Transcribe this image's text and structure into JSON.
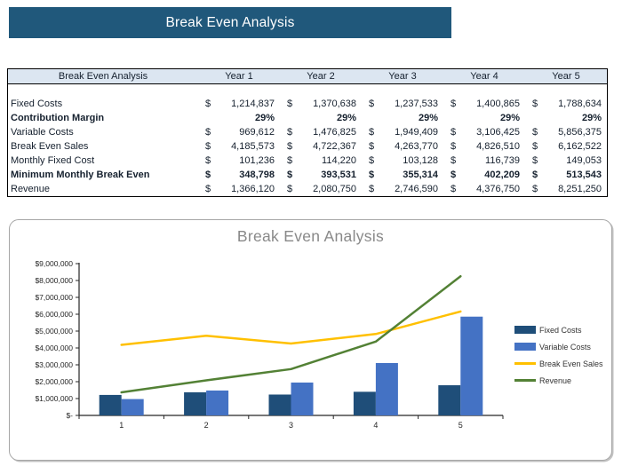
{
  "banner": {
    "title": "Break Even Analysis",
    "bg_color": "#20587B",
    "text_color": "#FFFFFF"
  },
  "table": {
    "currency_symbol": "$",
    "header": {
      "label": "Break Even Analysis",
      "years": [
        "Year 1",
        "Year 2",
        "Year 3",
        "Year 4",
        "Year 5"
      ]
    },
    "rows": [
      {
        "label": "Fixed Costs",
        "bold": false,
        "currency": true,
        "values": [
          "1,214,837",
          "1,370,638",
          "1,237,533",
          "1,400,865",
          "1,788,634"
        ]
      },
      {
        "label": "Contribution Margin",
        "bold": true,
        "currency": false,
        "values": [
          "29%",
          "29%",
          "29%",
          "29%",
          "29%"
        ]
      },
      {
        "label": "Variable Costs",
        "bold": false,
        "currency": true,
        "values": [
          "969,612",
          "1,476,825",
          "1,949,409",
          "3,106,425",
          "5,856,375"
        ]
      },
      {
        "label": "Break Even Sales",
        "bold": false,
        "currency": true,
        "values": [
          "4,185,573",
          "4,722,367",
          "4,263,770",
          "4,826,510",
          "6,162,522"
        ]
      },
      {
        "label": "Monthly Fixed Cost",
        "bold": false,
        "currency": true,
        "values": [
          "101,236",
          "114,220",
          "103,128",
          "116,739",
          "149,053"
        ]
      },
      {
        "label": "Minimum Monthly Break Even",
        "bold": true,
        "currency": true,
        "values": [
          "348,798",
          "393,531",
          "355,314",
          "402,209",
          "513,543"
        ]
      },
      {
        "label": "Revenue",
        "bold": false,
        "currency": true,
        "values": [
          "1,366,120",
          "2,080,750",
          "2,746,590",
          "4,376,750",
          "8,251,250"
        ]
      }
    ]
  },
  "chart_data": {
    "type": "bar",
    "subtype": "combo bar+line",
    "title": "Break Even Analysis",
    "categories": [
      "1",
      "2",
      "3",
      "4",
      "5"
    ],
    "series": [
      {
        "name": "Fixed Costs",
        "type": "bar",
        "color": "#1F4E79",
        "values": [
          1214837,
          1370638,
          1237533,
          1400865,
          1788634
        ]
      },
      {
        "name": "Variable Costs",
        "type": "bar",
        "color": "#4472C4",
        "values": [
          969612,
          1476825,
          1949409,
          3106425,
          5856375
        ]
      },
      {
        "name": "Break Even Sales",
        "type": "line",
        "color": "#FFC000",
        "values": [
          4185573,
          4722367,
          4263770,
          4826510,
          6162522
        ]
      },
      {
        "name": "Revenue",
        "type": "line",
        "color": "#538135",
        "values": [
          1366120,
          2080750,
          2746590,
          4376750,
          8251250
        ]
      }
    ],
    "y_axis": {
      "min": 0,
      "max": 9000000,
      "step": 1000000,
      "tick_labels": [
        "$-",
        "$1,000,000",
        "$2,000,000",
        "$3,000,000",
        "$4,000,000",
        "$5,000,000",
        "$6,000,000",
        "$7,000,000",
        "$8,000,000",
        "$9,000,000"
      ]
    },
    "xlabel": "",
    "ylabel": "",
    "grid": false,
    "legend_position": "right",
    "axis_color": "#262626",
    "tick_text_color": "#262626"
  }
}
